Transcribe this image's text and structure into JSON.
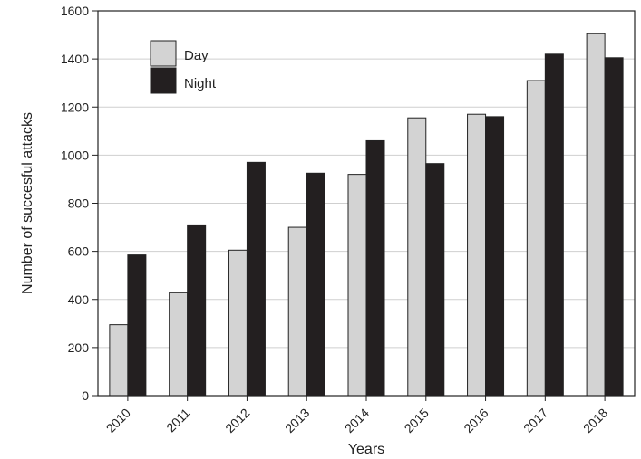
{
  "chart_data": {
    "type": "bar",
    "title": "",
    "xlabel": "Years",
    "ylabel": "Number of succesful attacks",
    "categories": [
      "2010",
      "2011",
      "2012",
      "2013",
      "2014",
      "2015",
      "2016",
      "2017",
      "2018"
    ],
    "series": [
      {
        "name": "Day",
        "color": "#d3d3d3",
        "values": [
          295,
          428,
          605,
          700,
          920,
          1155,
          1170,
          1310,
          1505
        ]
      },
      {
        "name": "Night",
        "color": "#231f20",
        "values": [
          585,
          710,
          970,
          925,
          1060,
          965,
          1160,
          1420,
          1405
        ]
      }
    ],
    "ylim": [
      0,
      1600
    ],
    "yticks": [
      "0",
      "200",
      "400",
      "600",
      "800",
      "1000",
      "1200",
      "1400",
      "1600"
    ],
    "grid": "horizontal",
    "legend_position": "top-left"
  }
}
